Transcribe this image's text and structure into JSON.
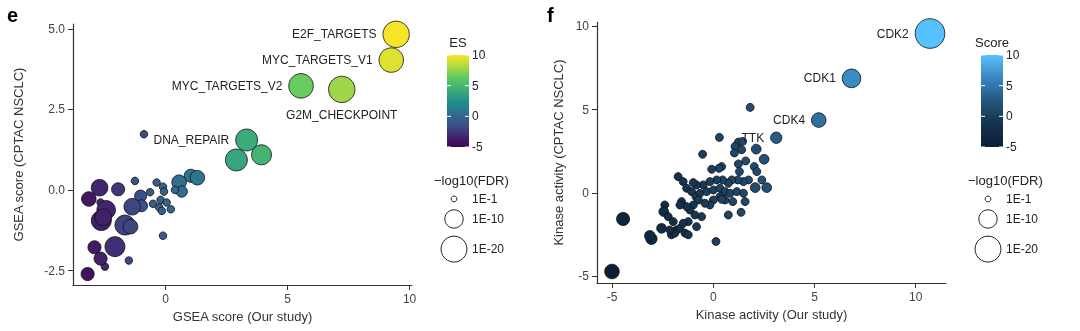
{
  "chart_data": [
    {
      "type": "bubble",
      "title": "e",
      "xlabel": "GSEA score (Our study)",
      "ylabel": "GSEA score (CPTAC NSCLC)",
      "clabel": "ES",
      "legend_title": "−log10(FDR)",
      "xlim": [
        -3.8,
        10.1
      ],
      "ylim": [
        -2.95,
        5.15
      ],
      "xticks": [
        0,
        5,
        10
      ],
      "yticks": [
        {
          "value": -2.5,
          "label": "-2.5"
        },
        {
          "value": 0,
          "label": "0.0"
        },
        {
          "value": 2.5,
          "label": "2.5"
        },
        {
          "value": 5,
          "label": "5.0"
        }
      ],
      "clim": [
        -5,
        10
      ],
      "cticks": [
        -5,
        0,
        5,
        10
      ],
      "size_legend": [
        {
          "value": 1,
          "label": "1E-1"
        },
        {
          "value": 10,
          "label": "1E-10"
        },
        {
          "value": 20,
          "label": "1E-20"
        }
      ],
      "x": [
        9.45,
        9.25,
        5.55,
        7.22,
        3.32,
        2.9,
        3.93,
        -0.89,
        1.03,
        1.3,
        0.55,
        0.66,
        0.38,
        -1.26,
        -0.37,
        -0.11,
        -0.07,
        -0.64,
        -0.52,
        -0.21,
        0.04,
        -0.27,
        -0.16,
        0.21,
        -0.11,
        -1.51,
        -2.49,
        -2.67,
        -1.03,
        -0.99,
        -1.37,
        -1.67,
        -1.44,
        -1.95,
        -2.71,
        -3.15,
        -2.44,
        -2.64,
        -2.56,
        -2.08,
        -2.92,
        -2.67,
        -3.2
      ],
      "values": [
        4.83,
        4.03,
        3.23,
        3.12,
        1.55,
        0.93,
        1.09,
        1.73,
        0.44,
        0.38,
        0.24,
        -0.05,
        0,
        0.28,
        0.23,
        0.1,
        -0.05,
        -0.07,
        -0.43,
        -0.31,
        -0.39,
        -0.54,
        -0.65,
        -0.6,
        -1.42,
        -2.19,
        -2.38,
        -0.39,
        -0.19,
        -0.49,
        -0.52,
        -1.09,
        -1.14,
        0.02,
        0.07,
        -0.28,
        -0.62,
        -0.95,
        -0.85,
        -1.76,
        -1.78,
        -2.13,
        -2.61
      ],
      "sizes": [
        20.8,
        17.9,
        18,
        20.8,
        14.3,
        14.3,
        11.9,
        1.7,
        5.1,
        6.3,
        6.3,
        3.8,
        1.7,
        1.7,
        1.7,
        1.7,
        1.7,
        1.7,
        1.7,
        1.7,
        1.7,
        1.7,
        1.7,
        1.7,
        1.7,
        1.7,
        1.7,
        1.7,
        4.3,
        4.3,
        8.2,
        11.9,
        6.3,
        5.1,
        8.2,
        6.3,
        10.3,
        11.9,
        8.2,
        11.9,
        5.1,
        5.1,
        5.1
      ],
      "cvalues": [
        9.8,
        9.3,
        6.5,
        7.8,
        4.2,
        3.8,
        4.8,
        -1.5,
        0.8,
        0.8,
        0.5,
        0.5,
        0.2,
        -1,
        -0.5,
        -0.3,
        -0.3,
        -0.7,
        -0.6,
        -0.4,
        -0.2,
        -0.4,
        -0.3,
        0,
        -0.8,
        -1.8,
        -3,
        -3,
        -1.3,
        -1.3,
        -1.8,
        -2,
        -1.8,
        -2.5,
        -3.3,
        -4,
        -3.3,
        -3.6,
        -3.5,
        -2.8,
        -3.8,
        -3.5,
        -4.2
      ],
      "value_labels": [
        "E2F_TARGETS",
        "MYC_TARGETS_V1",
        "MYC_TARGETS_V2",
        "G2M_CHECKPOINT",
        "DNA_REPAIR",
        null,
        null,
        null,
        null,
        null,
        null,
        null,
        null,
        null,
        null,
        null,
        null,
        null,
        null,
        null,
        null,
        null,
        null,
        null,
        null,
        null,
        null,
        null,
        null,
        null,
        null,
        null,
        null,
        null,
        null,
        null,
        null,
        null,
        null,
        null,
        null,
        null,
        null
      ]
    },
    {
      "type": "bubble",
      "title": "f",
      "xlabel": "Kinase activity (Our study)",
      "ylabel": "Kinase activity (CPTAC NSCLC)",
      "clabel": "Score",
      "legend_title": "−log10(FDR)",
      "xlim": [
        -5.75,
        11.5
      ],
      "ylim": [
        -5.4,
        10.25
      ],
      "xticks": [
        -5,
        0,
        5,
        10
      ],
      "yticks": [
        -5,
        0,
        5,
        10
      ],
      "clim": [
        -5,
        10
      ],
      "cticks": [
        -5,
        0,
        5,
        10
      ],
      "size_legend": [
        {
          "value": 1,
          "label": "1E-1"
        },
        {
          "value": 10,
          "label": "1E-10"
        },
        {
          "value": 20,
          "label": "1E-20"
        }
      ],
      "x": [
        10.71,
        6.83,
        5.21,
        3.11,
        -4.46,
        -5.01,
        -3.06,
        -3.14,
        1.82,
        0.3,
        -0.53,
        1.24,
        1.45,
        1.07,
        1.4,
        2.12,
        2.51,
        1.04,
        1.6,
        0.41,
        0.28,
        -0.08,
        2.02,
        2.15,
        1.24,
        1.29,
        1.74,
        2.4,
        2.64,
        2.07,
        1.49,
        1.21,
        0.91,
        0.74,
        0.46,
        0.17,
        -0.17,
        -0.5,
        -0.83,
        -0.99,
        -1.74,
        -1.49,
        -1.32,
        -1.07,
        -0.86,
        -0.66,
        -0.33,
        0,
        0.33,
        0.58,
        0.83,
        1.16,
        1.49,
        1.57,
        0.96,
        0.58,
        0.33,
        0,
        -0.17,
        -0.41,
        -0.74,
        -0.99,
        -1.16,
        -1.32,
        -1.57,
        -1.65,
        -1.24,
        -0.83,
        -0.58,
        -0.91,
        1.37,
        0.74,
        0.13,
        -2.4,
        -2.45,
        -2.23,
        -1.98,
        -1.82,
        -2.07,
        -1.9,
        -1.65,
        -1.4,
        -1.24,
        -2.56,
        -2.15,
        -1.49,
        0.41
      ],
      "values": [
        9.56,
        6.87,
        4.37,
        3.31,
        -1.56,
        -4.71,
        -2.75,
        -2.57,
        5.13,
        3.33,
        2.32,
        3.05,
        3.09,
        2.79,
        2.59,
        2.63,
        2.02,
        2.4,
        1.92,
        1.58,
        1.48,
        1.42,
        1.58,
        1.28,
        1.74,
        1.28,
        0.78,
        0.78,
        0.32,
        0.32,
        0.68,
        0.78,
        0.78,
        0.58,
        0.78,
        0.78,
        0.68,
        0.48,
        0.48,
        0.62,
        0.98,
        0.68,
        0.28,
        0.08,
        -0.22,
        -0.02,
        0.08,
        0.18,
        0.28,
        0.08,
        -0.02,
        0.08,
        -0.02,
        -0.52,
        -0.52,
        -0.42,
        -0.22,
        -0.42,
        -0.72,
        -0.62,
        -0.42,
        -0.72,
        -1.02,
        -0.82,
        -0.52,
        -0.72,
        -1.72,
        -2.02,
        -1.42,
        -1.32,
        -1.16,
        -1.32,
        -2.91,
        -0.72,
        -1.12,
        -1.42,
        -1.72,
        -2.22,
        -2.51,
        -2.41,
        -2.12,
        -2.41,
        -2.51,
        -2.12,
        -2.22,
        -1.82,
        -0.38
      ],
      "sizes": [
        26.3,
        10.3,
        6.3,
        3.8,
        5.1,
        6.3,
        3.8,
        3.3,
        1.9,
        1.9,
        1.9,
        1.9,
        1.9,
        1.9,
        1.9,
        2.8,
        2.8,
        1.9,
        1.9,
        1.9,
        1.9,
        1.9,
        1.9,
        1.9,
        1.9,
        1.9,
        1.9,
        1.9,
        2.8,
        2.8,
        1.9,
        1.9,
        1.9,
        1.9,
        1.9,
        1.9,
        1.9,
        1.9,
        1.9,
        1.9,
        1.9,
        1.9,
        1.9,
        1.9,
        1.9,
        1.9,
        1.9,
        1.9,
        1.9,
        1.9,
        1.9,
        1.9,
        1.9,
        1.9,
        1.9,
        1.9,
        1.9,
        1.9,
        1.9,
        1.9,
        1.9,
        1.9,
        1.9,
        1.9,
        1.9,
        1.9,
        1.9,
        1.9,
        1.9,
        1.9,
        1.9,
        1.9,
        1.9,
        1.9,
        2.8,
        1.9,
        1.9,
        1.9,
        1.9,
        1.9,
        1.9,
        1.9,
        1.9,
        2.8,
        1.9,
        1.9,
        1.9
      ],
      "cvalues": [
        10,
        6.5,
        4.5,
        3,
        -4,
        -5,
        -3,
        -3,
        1.5,
        0.5,
        0,
        1,
        1,
        1,
        1,
        1.5,
        2,
        1,
        1.5,
        0.5,
        0.5,
        0,
        1.5,
        1.5,
        1,
        1,
        1.5,
        2,
        2,
        1.5,
        1,
        1,
        1,
        0.5,
        0.5,
        0,
        0,
        -0.5,
        -0.5,
        -1,
        -1.5,
        -1,
        -1,
        -1,
        -0.5,
        -0.5,
        0,
        0,
        0.5,
        0.5,
        0.5,
        1,
        1,
        1,
        1,
        0.5,
        0,
        0,
        0,
        -0.5,
        -0.5,
        -1,
        -1,
        -1,
        -1.5,
        -1.5,
        -1,
        -0.5,
        -0.5,
        -1,
        1,
        0.5,
        0,
        -2.5,
        -2.5,
        -2,
        -2,
        -2,
        -2,
        -2,
        -1.5,
        -1.5,
        -1,
        -2.5,
        -2,
        -1.5,
        0.5
      ],
      "value_labels": [
        "CDK2",
        "CDK1",
        "CDK4",
        "TTK",
        null,
        null,
        null,
        null,
        null,
        null,
        null,
        null,
        null,
        null,
        null,
        null,
        null,
        null,
        null,
        null,
        null,
        null,
        null,
        null,
        null,
        null,
        null,
        null,
        null,
        null,
        null,
        null,
        null,
        null,
        null,
        null,
        null,
        null,
        null,
        null,
        null,
        null,
        null,
        null,
        null,
        null,
        null,
        null,
        null,
        null,
        null,
        null,
        null,
        null,
        null,
        null,
        null,
        null,
        null,
        null,
        null,
        null,
        null,
        null,
        null,
        null,
        null,
        null,
        null,
        null,
        null,
        null,
        null,
        null,
        null,
        null,
        null,
        null,
        null,
        null,
        null,
        null,
        null,
        null,
        null,
        null,
        null
      ]
    }
  ]
}
